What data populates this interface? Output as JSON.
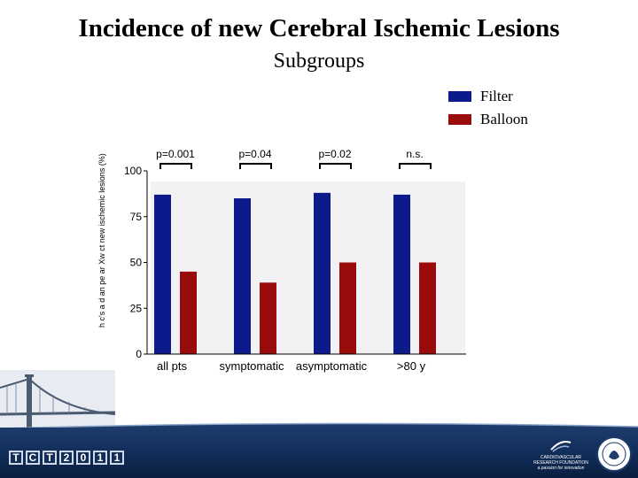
{
  "slide": {
    "title": "Incidence of new Cerebral Ischemic Lesions",
    "subtitle": "Subgroups"
  },
  "legend": [
    {
      "label": "Filter",
      "color": "#0c1a8c"
    },
    {
      "label": "Balloon",
      "color": "#9a0b0b"
    }
  ],
  "chart_data": {
    "type": "bar",
    "categories": [
      "all pts",
      "symptomatic",
      "asymptomatic",
      ">80 y"
    ],
    "series": [
      {
        "name": "Filter",
        "values": [
          87,
          85,
          88,
          87
        ],
        "color": "#0c1a8c"
      },
      {
        "name": "Balloon",
        "values": [
          45,
          39,
          50,
          50
        ],
        "color": "#9a0b0b"
      }
    ],
    "ylim": [
      0,
      100
    ],
    "yticks": [
      {
        "value": 0,
        "label": "0"
      },
      {
        "value": 25,
        "label": "25"
      },
      {
        "value": 50,
        "label": "50"
      },
      {
        "value": 75,
        "label": "75"
      },
      {
        "value": 100,
        "label": "100"
      }
    ],
    "pvalues": [
      "p=0.001",
      "p=0.04",
      "p=0.02",
      "n.s."
    ],
    "ylabel_garbled": "h c's a d an pe ar Xw ct new ischemic lesions (%)",
    "grid": false,
    "legend_position": "top-right"
  },
  "footer": {
    "logo_chars": [
      "T",
      "C",
      "T",
      "2",
      "0",
      "1",
      "1"
    ],
    "org_line1": "CARDIOVASCULAR",
    "org_line2": "RESEARCH FOUNDATION",
    "org_tagline": "a passion for innovation"
  }
}
